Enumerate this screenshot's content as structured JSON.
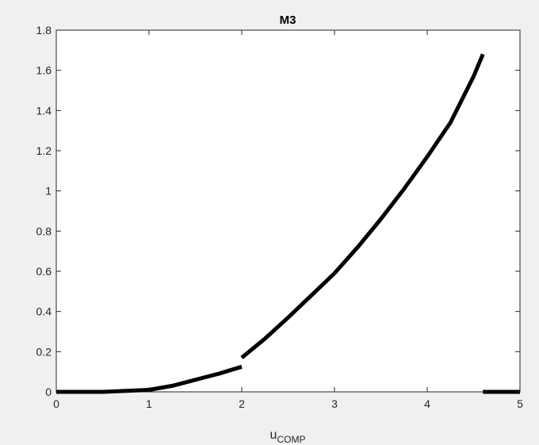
{
  "chart_data": {
    "type": "line",
    "title": "M3",
    "xlabel": "u",
    "xlabel_subscript": "COMP",
    "ylabel": "",
    "xlim": [
      0,
      5
    ],
    "ylim": [
      0,
      1.8
    ],
    "xticks": [
      "0",
      "1",
      "2",
      "3",
      "4",
      "5"
    ],
    "yticks": [
      "0",
      "0.2",
      "0.4",
      "0.6",
      "0.8",
      "1",
      "1.2",
      "1.4",
      "1.6",
      "1.8"
    ],
    "grid": false,
    "series": [
      {
        "x": [
          0,
          0.5,
          1.0
        ],
        "y": [
          0,
          0,
          0.01
        ]
      },
      {
        "x": [
          1.0,
          1.25,
          1.5,
          1.75,
          2.0
        ],
        "y": [
          0.01,
          0.03,
          0.06,
          0.09,
          0.125
        ]
      },
      {
        "x": [
          2.0,
          2.25,
          2.5,
          2.75,
          3.0,
          3.25,
          3.5,
          3.75,
          4.0,
          4.25,
          4.5,
          4.6
        ],
        "y": [
          0.17,
          0.265,
          0.37,
          0.48,
          0.59,
          0.72,
          0.86,
          1.01,
          1.17,
          1.34,
          1.57,
          1.68
        ]
      },
      {
        "x": [
          4.6,
          5.0
        ],
        "y": [
          0,
          0
        ]
      }
    ],
    "colors": {
      "line": "#000000",
      "axes_bg": "#ffffff",
      "figure_bg": "#f0f0f0",
      "axis": "#262626"
    }
  }
}
